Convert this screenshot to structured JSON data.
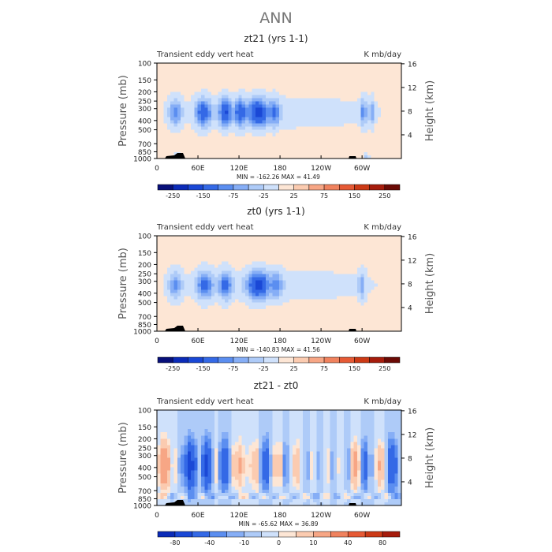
{
  "page": {
    "title": "ANN"
  },
  "colors": {
    "neg": [
      "#08107a",
      "#0b2bb8",
      "#1a48d6",
      "#3469e6",
      "#5b8ef0",
      "#86aef6",
      "#aecbf8",
      "#cfe1fb"
    ],
    "pos": [
      "#fde6d5",
      "#fbcbb0",
      "#f7a685",
      "#f0825e",
      "#e65a35",
      "#cc3a16",
      "#a61c0c",
      "#6b0a05"
    ],
    "topography": "#000000"
  },
  "chart_data": [
    {
      "type": "heatmap",
      "title": "zt21 (yrs 1-1)",
      "left_label": "Transient eddy vert heat",
      "right_label": "K mb/day",
      "ylabel": "Pressure (mb)",
      "y2label": "Height (km)",
      "xticks": [
        "0",
        "60E",
        "120E",
        "180",
        "120W",
        "60W"
      ],
      "xtick_lon": [
        0,
        60,
        120,
        180,
        240,
        300
      ],
      "xlim": [
        0,
        357.5
      ],
      "yticks": [
        "100",
        "150",
        "200",
        "250",
        "300",
        "400",
        "500",
        "700",
        "850",
        "1000"
      ],
      "ytick_p": [
        100,
        150,
        200,
        250,
        300,
        400,
        500,
        700,
        850,
        1000
      ],
      "ylim": [
        1000,
        100
      ],
      "y2ticks": [
        "4",
        "8",
        "12",
        "16"
      ],
      "y2tick_km": [
        4,
        8,
        12,
        16
      ],
      "stats": "MIN = -162.26   MAX =  41.49",
      "min": -162.26,
      "max": 41.49,
      "colorbar_labels": [
        "-250",
        "-150",
        "-75",
        "-25",
        "25",
        "75",
        "150",
        "250"
      ],
      "colorbar_bounds": [
        -300,
        -250,
        -200,
        -150,
        -100,
        -75,
        -50,
        -25,
        0,
        25,
        50,
        75,
        100,
        150,
        200,
        250,
        300
      ],
      "field": "A"
    },
    {
      "type": "heatmap",
      "title": "zt0 (yrs 1-1)",
      "left_label": "Transient eddy vert heat",
      "right_label": "K mb/day",
      "ylabel": "Pressure (mb)",
      "y2label": "Height (km)",
      "xticks": [
        "0",
        "60E",
        "120E",
        "180",
        "120W",
        "60W"
      ],
      "xtick_lon": [
        0,
        60,
        120,
        180,
        240,
        300
      ],
      "xlim": [
        0,
        357.5
      ],
      "yticks": [
        "100",
        "150",
        "200",
        "250",
        "300",
        "400",
        "500",
        "700",
        "850",
        "1000"
      ],
      "ytick_p": [
        100,
        150,
        200,
        250,
        300,
        400,
        500,
        700,
        850,
        1000
      ],
      "ylim": [
        1000,
        100
      ],
      "y2ticks": [
        "4",
        "8",
        "12",
        "16"
      ],
      "y2tick_km": [
        4,
        8,
        12,
        16
      ],
      "stats": "MIN = -140.83   MAX =  41.56",
      "min": -140.83,
      "max": 41.56,
      "colorbar_labels": [
        "-250",
        "-150",
        "-75",
        "-25",
        "25",
        "75",
        "150",
        "250"
      ],
      "colorbar_bounds": [
        -300,
        -250,
        -200,
        -150,
        -100,
        -75,
        -50,
        -25,
        0,
        25,
        50,
        75,
        100,
        150,
        200,
        250,
        300
      ],
      "field": "B"
    },
    {
      "type": "heatmap",
      "title": "zt21 - zt0",
      "left_label": "Transient eddy vert heat",
      "right_label": "K mb/day",
      "ylabel": "Pressure (mb)",
      "y2label": "Height (km)",
      "xticks": [
        "0",
        "60E",
        "120E",
        "180",
        "120W",
        "60W"
      ],
      "xtick_lon": [
        0,
        60,
        120,
        180,
        240,
        300
      ],
      "xlim": [
        0,
        357.5
      ],
      "yticks": [
        "100",
        "150",
        "200",
        "250",
        "300",
        "400",
        "500",
        "700",
        "850",
        "1000"
      ],
      "ytick_p": [
        100,
        150,
        200,
        250,
        300,
        400,
        500,
        700,
        850,
        1000
      ],
      "ylim": [
        1000,
        100
      ],
      "y2ticks": [
        "4",
        "8",
        "12",
        "16"
      ],
      "y2tick_km": [
        4,
        8,
        12,
        16
      ],
      "stats": "MIN = -65.62   MAX =  36.89",
      "min": -65.62,
      "max": 36.89,
      "colorbar_labels": [
        "-80",
        "-40",
        "-10",
        "0",
        "10",
        "40",
        "80"
      ],
      "colorbar_bounds": [
        -100,
        -80,
        -60,
        -40,
        -20,
        -10,
        -5,
        0,
        5,
        10,
        20,
        40,
        60,
        80,
        100
      ],
      "field": "D"
    }
  ]
}
